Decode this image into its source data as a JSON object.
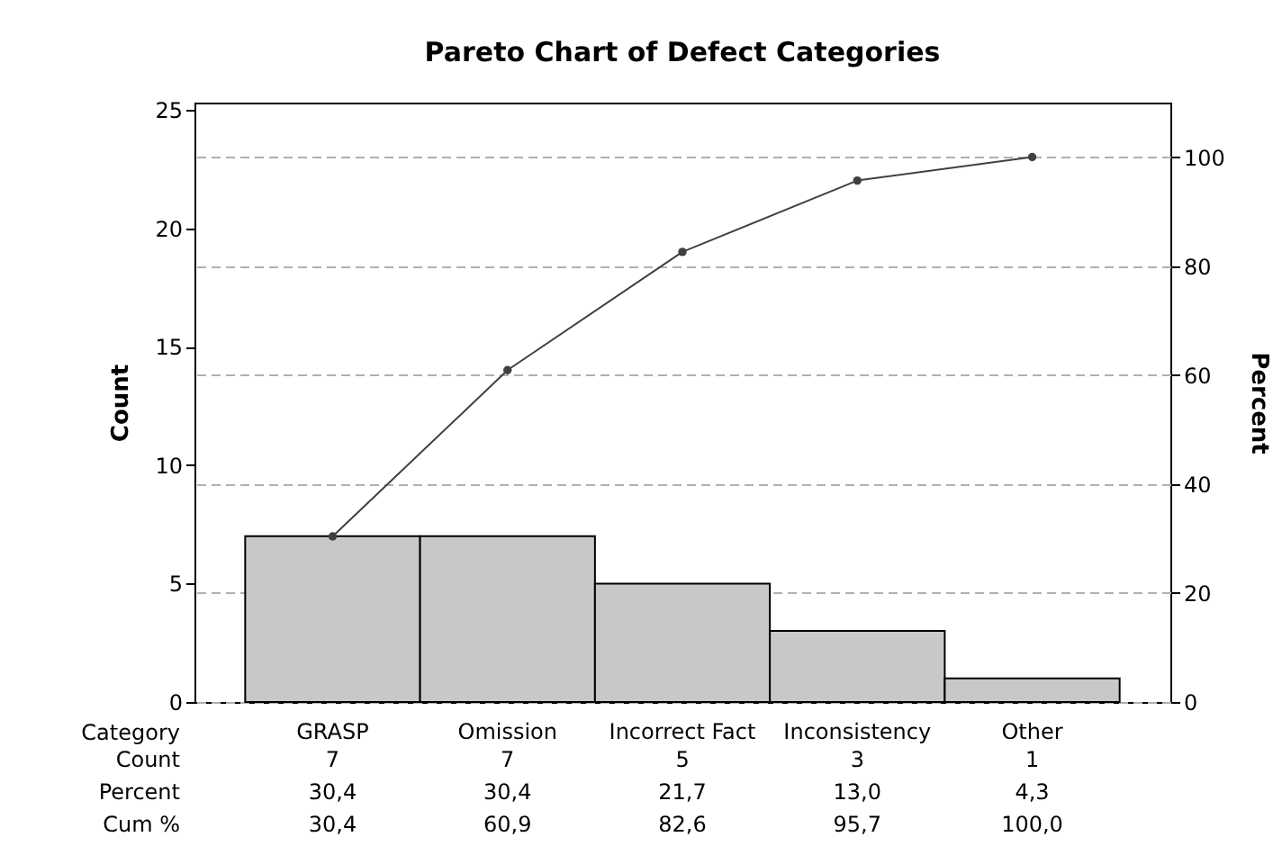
{
  "chart_data": {
    "type": "bar",
    "title": "Pareto Chart of Defect Categories",
    "xlabel": "Category",
    "ylabel": "Count",
    "y2label": "Percent",
    "categories": [
      "GRASP",
      "Omission",
      "Incorrect Fact",
      "Inconsistency",
      "Other"
    ],
    "series": [
      {
        "color": "#c8c8c8",
        "values": [
          7,
          7,
          5,
          3,
          1
        ],
        "value_labels": [
          "7",
          "7",
          "5",
          "3",
          "1"
        ]
      },
      {
        "type": "line",
        "axis": "y2",
        "color": "#404040",
        "marker": "circle",
        "values": [
          30.4,
          60.9,
          82.6,
          95.7,
          100
        ],
        "value_labels": [
          "30,4",
          "60,9",
          "82,6",
          "95,7",
          "100,0"
        ]
      }
    ],
    "annotations": [
      "Count",
      "Percent",
      "Cum %",
      "30,4",
      "30,4",
      "21,7",
      "13,0",
      "4,3"
    ],
    "ylim": [
      0,
      25.3
    ],
    "yticks": [
      0,
      5,
      10,
      15,
      20,
      25
    ],
    "y2lim": [
      0,
      110
    ],
    "y2ticks": [
      0,
      20,
      40,
      60,
      80,
      100
    ],
    "grid": "y2"
  }
}
